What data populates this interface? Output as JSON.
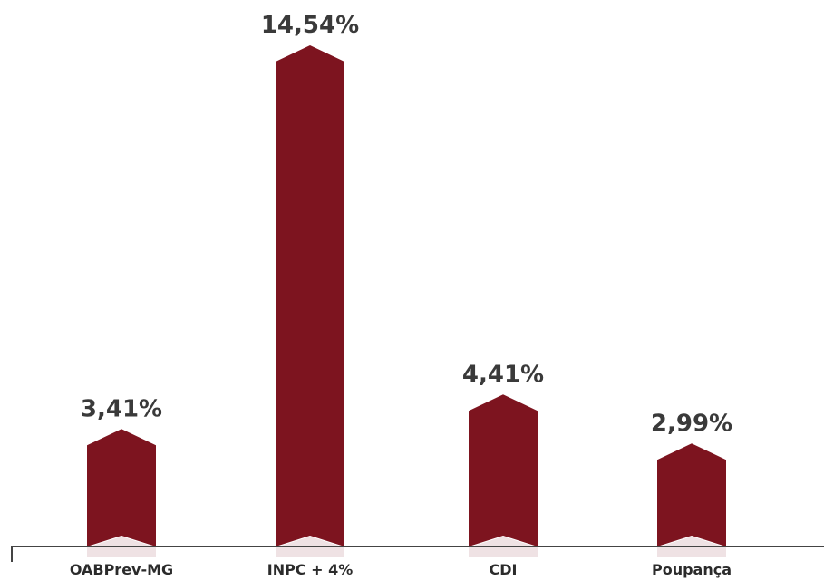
{
  "chart_data": {
    "type": "bar",
    "categories": [
      "OABPrev-MG",
      "INPC + 4%",
      "CDI",
      "Poupança"
    ],
    "values": [
      3.41,
      14.54,
      4.41,
      2.99
    ],
    "value_labels": [
      "3,41%",
      "14,54%",
      "4,41%",
      "2,99%"
    ],
    "title": "",
    "xlabel": "",
    "ylabel": "",
    "ylim": [
      0,
      14.54
    ],
    "grid": false,
    "legend": "none",
    "bar_color": "#7d141f",
    "label_color": "#3a3a3a",
    "axis_color": "#444444"
  }
}
